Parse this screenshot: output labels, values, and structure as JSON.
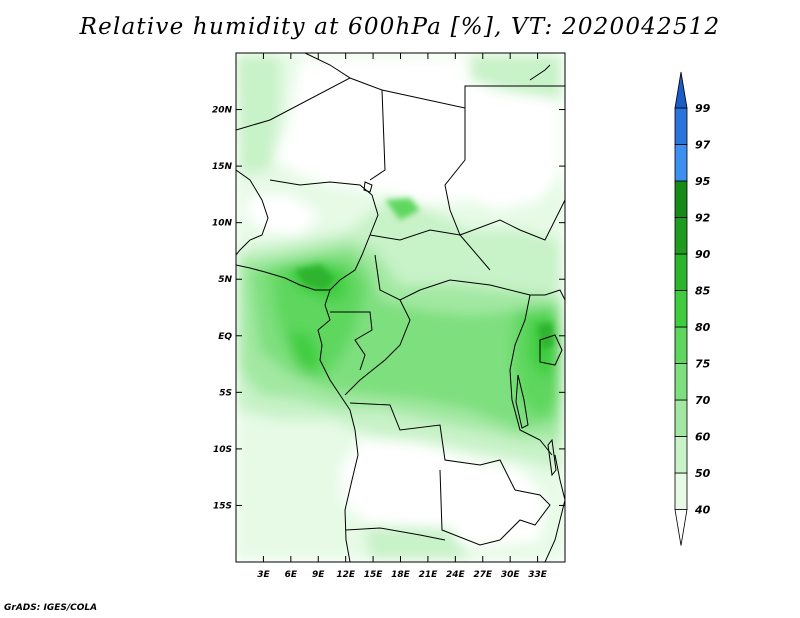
{
  "title": "Relative humidity at 600hPa [%], VT: 2020042512",
  "footer": "GrADS: IGES/COLA",
  "map": {
    "variable": "Relative humidity",
    "level": "600hPa",
    "units": "%",
    "valid_time": "2020042512",
    "lon_range_deg": [
      0,
      36
    ],
    "lat_range_deg": [
      -20,
      25
    ],
    "x_ticks": [
      {
        "lon": 3,
        "label": "3E"
      },
      {
        "lon": 6,
        "label": "6E"
      },
      {
        "lon": 9,
        "label": "9E"
      },
      {
        "lon": 12,
        "label": "12E"
      },
      {
        "lon": 15,
        "label": "15E"
      },
      {
        "lon": 18,
        "label": "18E"
      },
      {
        "lon": 21,
        "label": "21E"
      },
      {
        "lon": 24,
        "label": "24E"
      },
      {
        "lon": 27,
        "label": "27E"
      },
      {
        "lon": 30,
        "label": "30E"
      },
      {
        "lon": 33,
        "label": "33E"
      }
    ],
    "y_ticks": [
      {
        "lat": 20,
        "label": "20N"
      },
      {
        "lat": 15,
        "label": "15N"
      },
      {
        "lat": 10,
        "label": "10N"
      },
      {
        "lat": 5,
        "label": "5N"
      },
      {
        "lat": 0,
        "label": "EQ"
      },
      {
        "lat": -5,
        "label": "5S"
      },
      {
        "lat": -10,
        "label": "10S"
      },
      {
        "lat": -15,
        "label": "15S"
      }
    ]
  },
  "colorbar": {
    "levels": [
      "40",
      "50",
      "60",
      "70",
      "75",
      "80",
      "85",
      "90",
      "92",
      "95",
      "97",
      "99"
    ],
    "colors": {
      "below_40": "#ffffff",
      "40_50": "#e6fae6",
      "50_60": "#c8f2c8",
      "60_70": "#a2e8a2",
      "70_75": "#7edf7e",
      "75_80": "#5fd75f",
      "80_85": "#3fcd3f",
      "85_90": "#2db42d",
      "90_92": "#1f9b1f",
      "92_95": "#168a16",
      "95_97": "#3d8ff0",
      "97_99": "#2b74dc",
      "above_99": "#1a5cc8"
    }
  }
}
